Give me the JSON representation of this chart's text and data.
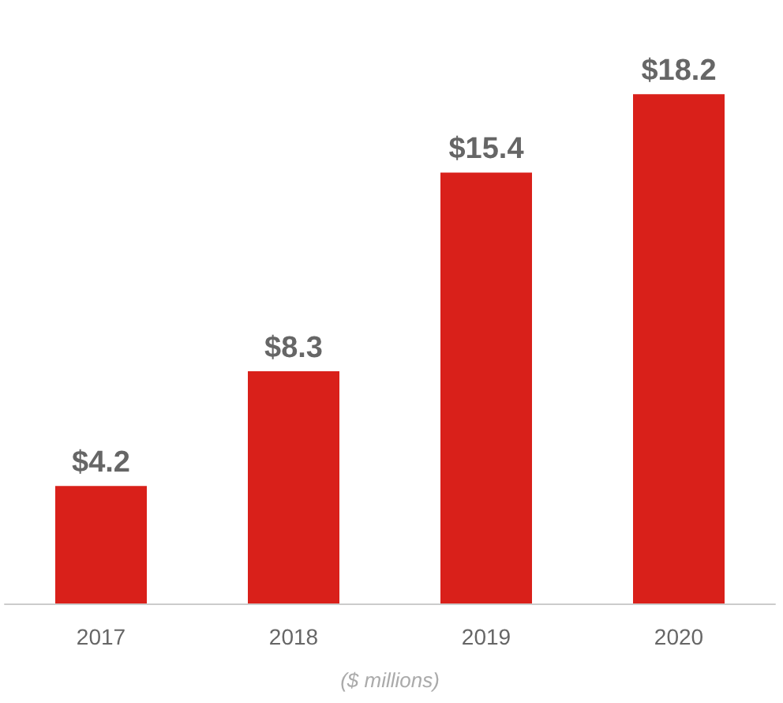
{
  "chart_data": {
    "type": "bar",
    "xlabel": "($ millions)",
    "categories": [
      "2017",
      "2018",
      "2019",
      "2020"
    ],
    "values": [
      4.2,
      8.3,
      15.4,
      18.2
    ],
    "color": "#d9201a",
    "value_labels": [
      "$4.2",
      "$8.3",
      "$15.4",
      "$18.2"
    ],
    "tick_labels": "x"
  }
}
